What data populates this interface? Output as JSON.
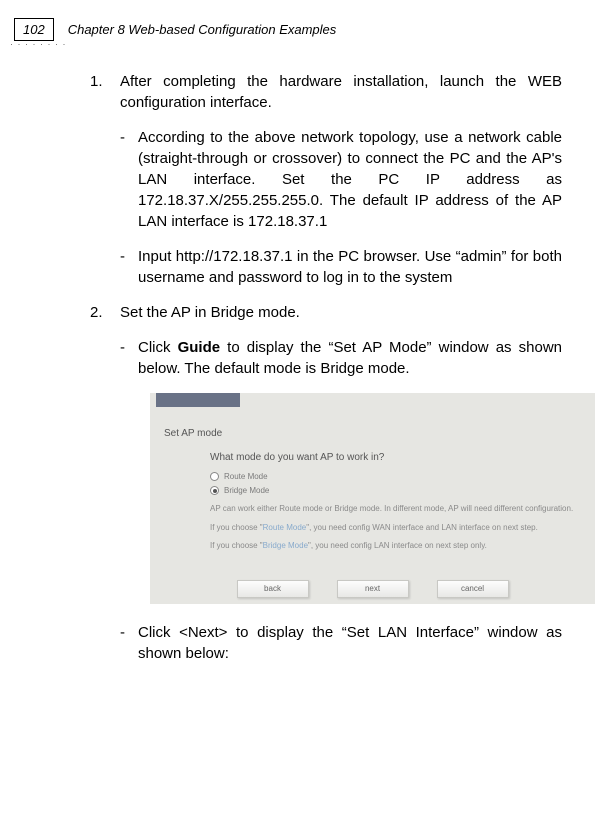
{
  "header": {
    "page_number": "102",
    "chapter": "Chapter 8 Web-based Configuration Examples"
  },
  "content": {
    "step1_num": "1.",
    "step1": "After completing the hardware installation, launch the WEB configuration interface.",
    "step1a": "According to the above network topology, use a network cable (straight-through or crossover) to connect the PC and the AP's LAN interface. Set the PC IP address as 172.18.37.X/255.255.255.0. The default IP address of the AP LAN interface is 172.18.37.1",
    "step1b": "Input http://172.18.37.1 in the PC browser. Use “admin” for both username and password to log in to the system",
    "step2_num": "2.",
    "step2": "Set the AP in Bridge mode.",
    "step2a_pre": "Click ",
    "step2a_bold": "Guide",
    "step2a_post": " to display the “Set AP Mode” window as shown below. The default mode is Bridge mode.",
    "step2b": "Click <Next> to display the “Set LAN Interface” window as shown below:"
  },
  "screenshot": {
    "panel_title": "Set AP mode",
    "question": "What mode do you want AP to work in?",
    "opt1": "Route Mode",
    "opt2": "Bridge Mode",
    "note1": "AP can work either Route mode or Bridge mode. In different mode, AP will need different configuration.",
    "note2a": "If you choose \"",
    "note2_link": "Route Mode",
    "note2b": "\", you need config WAN interface and LAN interface on next step.",
    "note3a": "If you choose \"",
    "note3_link": "Bridge Mode",
    "note3b": "\", you need config LAN interface on next step only.",
    "btn_back": "back",
    "btn_next": "next",
    "btn_cancel": "cancel"
  }
}
